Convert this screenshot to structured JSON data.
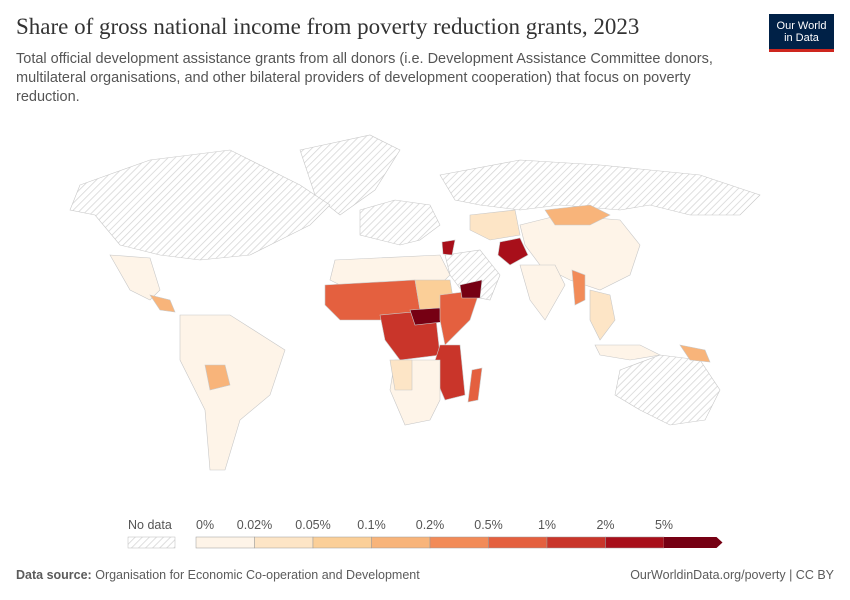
{
  "header": {
    "title": "Share of gross national income from poverty reduction grants, 2023",
    "subtitle": "Total official development assistance grants from all donors (i.e. Development Assistance Committee donors, multilateral organisations, and other bilateral providers of development cooperation) that focus on poverty reduction.",
    "logo": [
      "Our World",
      "in Data"
    ]
  },
  "legend": {
    "no_data": "No data",
    "labels": [
      "0%",
      "0.02%",
      "0.05%",
      "0.1%",
      "0.2%",
      "0.5%",
      "1%",
      "2%",
      "5%"
    ],
    "colors": [
      "#fef4e8",
      "#fde5c6",
      "#fbcf98",
      "#f8b47a",
      "#f28b58",
      "#e4603f",
      "#c9352a",
      "#a80f1a",
      "#760013"
    ]
  },
  "footer": {
    "source_label": "Data source:",
    "source": "Organisation for Economic Co-operation and Development",
    "link": "OurWorldinData.org/poverty | CC BY"
  }
}
